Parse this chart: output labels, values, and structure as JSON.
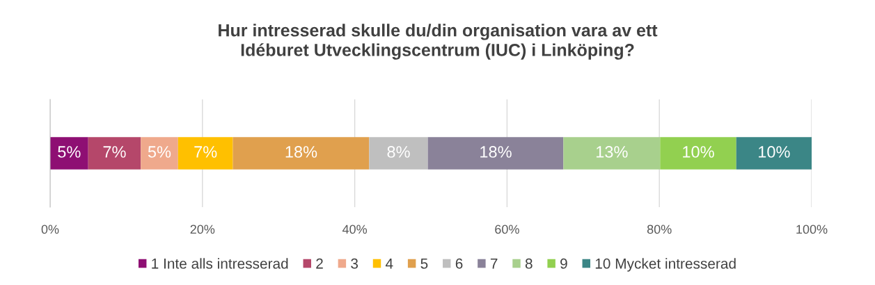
{
  "chart_data": {
    "type": "bar",
    "orientation": "horizontal",
    "stacked": true,
    "title": "Hur intresserad skulle du/din organisation vara av ett\nIdéburet Utvecklingscentrum (IUC) i Linköping?",
    "categories": [
      null
    ],
    "xlim": [
      0,
      100
    ],
    "xticks": [
      {
        "value": 0,
        "label": "0%"
      },
      {
        "value": 20,
        "label": "20%"
      },
      {
        "value": 40,
        "label": "40%"
      },
      {
        "value": 60,
        "label": "60%"
      },
      {
        "value": 80,
        "label": "80%"
      },
      {
        "value": 100,
        "label": "100%"
      }
    ],
    "tick_labels": "x",
    "grid": "x",
    "legend": "bottom",
    "series": [
      {
        "name": "1 Inte alls intresserad",
        "color": "#8e0f73",
        "values": [
          5.0
        ],
        "value_labels": [
          "5%"
        ]
      },
      {
        "name": "2",
        "color": "#b5476a",
        "values": [
          6.9
        ],
        "value_labels": [
          "7%"
        ]
      },
      {
        "name": "3",
        "color": "#efa98c",
        "values": [
          4.9
        ],
        "value_labels": [
          "5%"
        ]
      },
      {
        "name": "4",
        "color": "#ffc000",
        "values": [
          7.2
        ],
        "value_labels": [
          "7%"
        ]
      },
      {
        "name": "5",
        "color": "#e0a04e",
        "values": [
          17.9
        ],
        "value_labels": [
          "18%"
        ]
      },
      {
        "name": "6",
        "color": "#bfbfbf",
        "values": [
          7.7
        ],
        "value_labels": [
          "8%"
        ]
      },
      {
        "name": "7",
        "color": "#8a8299",
        "values": [
          17.8
        ],
        "value_labels": [
          "18%"
        ]
      },
      {
        "name": "8",
        "color": "#a8d08d",
        "values": [
          12.7
        ],
        "value_labels": [
          "13%"
        ]
      },
      {
        "name": "9",
        "color": "#92d050",
        "values": [
          10.0
        ],
        "value_labels": [
          "10%"
        ]
      },
      {
        "name": "10 Mycket intresserad",
        "color": "#3b8686",
        "values": [
          9.9
        ],
        "value_labels": [
          "10%"
        ]
      }
    ]
  }
}
